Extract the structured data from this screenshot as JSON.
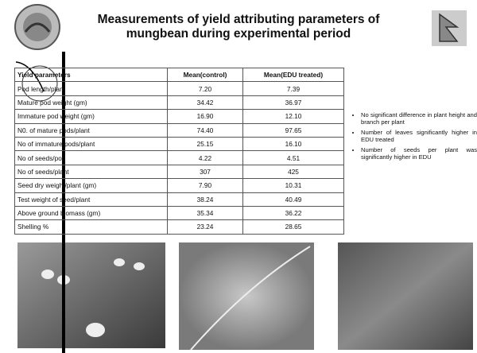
{
  "header": {
    "title_lines": [
      "Measurements of yield attributing parameters of",
      "mungbean during experimental period"
    ]
  },
  "table": {
    "columns": [
      "Yield parameters",
      "Mean(control)",
      "Mean(EDU treated)"
    ],
    "rows": [
      [
        "Pod length/plant",
        "7.20",
        "7.39"
      ],
      [
        "Mature pod weight (gm)",
        "34.42",
        "36.97"
      ],
      [
        "Immature pod weight (gm)",
        "16.90",
        "12.10"
      ],
      [
        "N0. of mature pods/plant",
        "74.40",
        "97.65"
      ],
      [
        "No of immature pods/plant",
        "25.15",
        "16.10"
      ],
      [
        "No of seeds/pod",
        "4.22",
        "4.51"
      ],
      [
        "No of seeds/plant",
        "307",
        "425"
      ],
      [
        "Seed dry weight/plant (gm)",
        "7.90",
        "10.31"
      ],
      [
        "Test weight of seed/plant",
        "38.24",
        "40.49"
      ],
      [
        "Above ground biomass (gm)",
        "35.34",
        "36.22"
      ],
      [
        "Shelling %",
        "23.24",
        "28.65"
      ]
    ]
  },
  "bullets": [
    "No significant difference in plant height and branch per plant",
    "Number of leaves significantly higher in EDU treated",
    "Number of seeds per plant was significantly higher in EDU"
  ]
}
